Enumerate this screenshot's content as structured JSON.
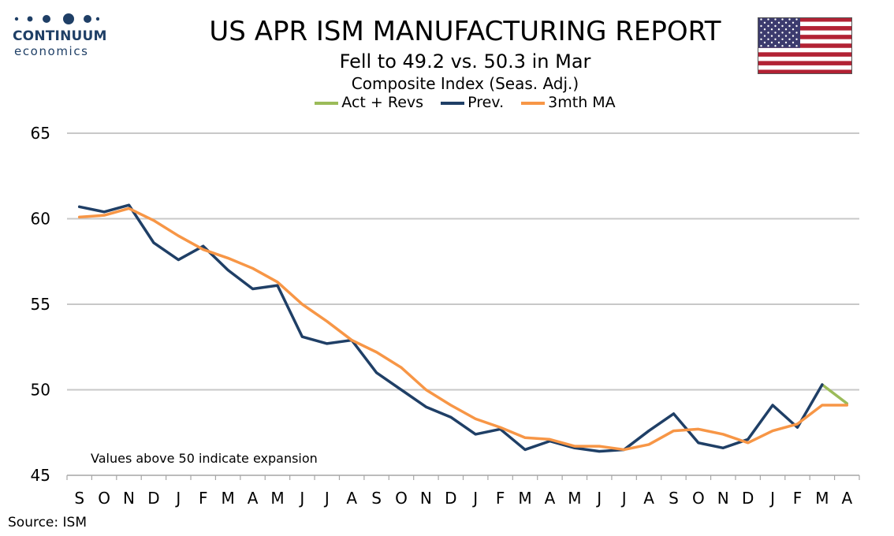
{
  "branding": {
    "name": "CONTINUUM",
    "tagline": "economics",
    "logo_color": "#1f3f66"
  },
  "flag_icon": "us-flag-icon",
  "source": "Source: ISM",
  "chart_data": {
    "type": "line",
    "title": "US APR ISM MANUFACTURING REPORT",
    "subtitle": "Fell to 49.2 vs. 50.3 in Mar",
    "ylabel": "Composite Index (Seas. Adj.)",
    "xlabel": "",
    "ylim": [
      45,
      65
    ],
    "yticks": [
      45,
      50,
      55,
      60,
      65
    ],
    "grid": true,
    "legend_position": "top-center",
    "categories": [
      "S",
      "O",
      "N",
      "D",
      "J",
      "F",
      "M",
      "A",
      "M",
      "J",
      "J",
      "A",
      "S",
      "O",
      "N",
      "D",
      "J",
      "F",
      "M",
      "A",
      "M",
      "J",
      "J",
      "A",
      "S",
      "O",
      "N",
      "D",
      "J",
      "F",
      "M",
      "A"
    ],
    "annotation": "Values above 50 indicate expansion",
    "series": [
      {
        "name": "Act + Revs",
        "color": "#9bbb59",
        "values": [
          null,
          null,
          null,
          null,
          null,
          null,
          null,
          null,
          null,
          null,
          null,
          null,
          null,
          null,
          null,
          null,
          null,
          null,
          null,
          null,
          null,
          null,
          null,
          null,
          null,
          null,
          null,
          null,
          null,
          null,
          50.3,
          49.2
        ]
      },
      {
        "name": "Prev.",
        "color": "#1f3f66",
        "values": [
          60.7,
          60.4,
          60.8,
          58.6,
          57.6,
          58.4,
          57.0,
          55.9,
          56.1,
          53.1,
          52.7,
          52.9,
          51.0,
          50.0,
          49.0,
          48.4,
          47.4,
          47.7,
          46.5,
          47.0,
          46.6,
          46.4,
          46.5,
          47.6,
          48.6,
          46.9,
          46.6,
          47.1,
          49.1,
          47.8,
          50.3,
          null
        ]
      },
      {
        "name": "3mth MA",
        "color": "#f79646",
        "values": [
          60.1,
          60.2,
          60.6,
          59.9,
          59.0,
          58.2,
          57.7,
          57.1,
          56.3,
          55.0,
          54.0,
          52.9,
          52.2,
          51.3,
          50.0,
          49.1,
          48.3,
          47.8,
          47.2,
          47.1,
          46.7,
          46.7,
          46.5,
          46.8,
          47.6,
          47.7,
          47.4,
          46.9,
          47.6,
          48.0,
          49.1,
          49.1
        ]
      }
    ]
  }
}
